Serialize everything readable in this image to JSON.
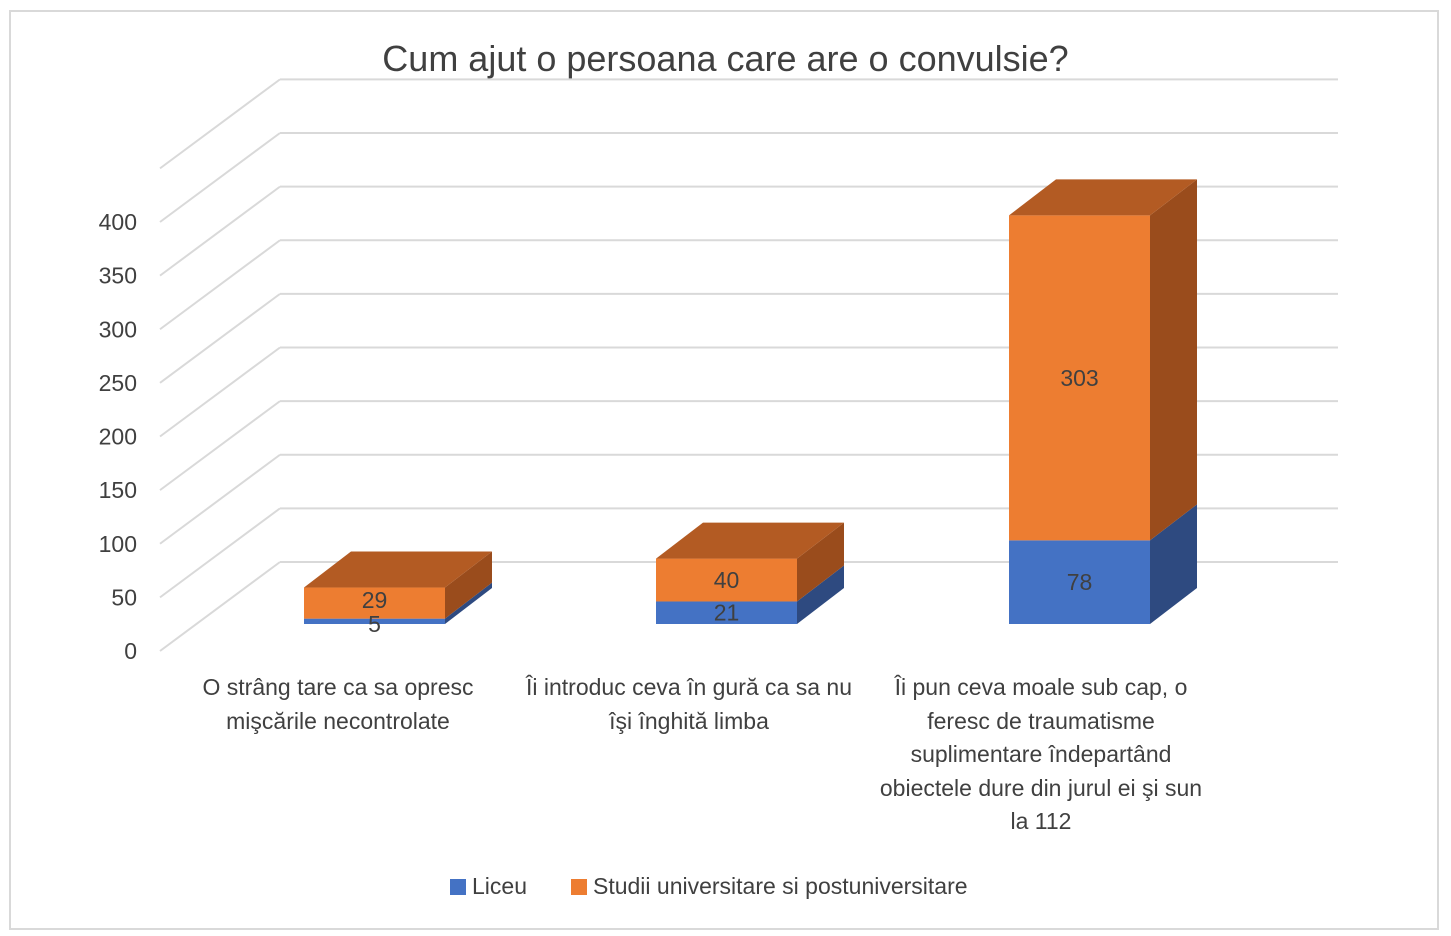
{
  "chart_data": {
    "type": "bar",
    "stacked": true,
    "three_d": true,
    "title": "Cum ajut o persoana care are o convulsie?",
    "categories": [
      "O strâng tare ca sa opresc mişcările necontrolate",
      "Îi introduc ceva în gură ca sa nu îşi înghită limba",
      "Îi pun ceva moale sub cap, o feresc de traumatisme suplimentare îndepartând obiectele dure din jurul ei şi sun la 112"
    ],
    "series": [
      {
        "name": "Liceu",
        "values": [
          5,
          21,
          78
        ],
        "color": "#4472C4"
      },
      {
        "name": "Studii universitare si postuniversitare",
        "values": [
          29,
          40,
          303
        ],
        "color": "#ED7D31"
      }
    ],
    "ylim": [
      0,
      400
    ],
    "yticks": [
      "0",
      "50",
      "100",
      "150",
      "200",
      "250",
      "300",
      "350",
      "400"
    ],
    "grid": true,
    "legend": "bottom"
  }
}
